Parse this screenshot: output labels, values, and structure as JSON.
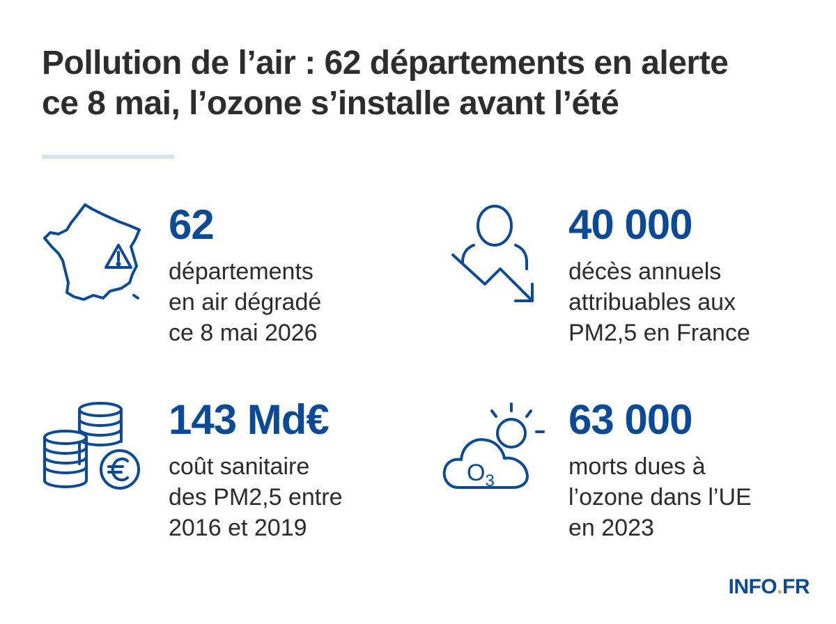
{
  "title": {
    "line1": "Pollution de l’air : 62 départements en alerte",
    "line2": "ce 8 mai, l’ozone s’installe avant l’été"
  },
  "stats": [
    {
      "icon": "france-map-warning-icon",
      "number": "62",
      "desc": [
        "départements",
        "en air dégradé",
        "ce 8 mai 2026"
      ]
    },
    {
      "icon": "person-downtrend-icon",
      "number": "40 000",
      "desc": [
        "décès annuels",
        "attribuables aux",
        "PM2,5 en France"
      ]
    },
    {
      "icon": "coins-euro-icon",
      "number": "143 Md€",
      "desc": [
        "coût sanitaire",
        "des PM2,5 entre",
        "2016 et 2019"
      ]
    },
    {
      "icon": "ozone-cloud-sun-icon",
      "number": "63 000",
      "icon_label": "O3",
      "desc": [
        "morts dues à",
        "l’ozone dans l’UE",
        "en 2023"
      ]
    }
  ],
  "brand": {
    "name": "INFO",
    "dot": ".",
    "suffix": "FR"
  },
  "colors": {
    "accent": "#0b4a96",
    "text": "#2b2b2b",
    "divider": "#d8e3f0",
    "brand_dot": "#e8a13a"
  }
}
